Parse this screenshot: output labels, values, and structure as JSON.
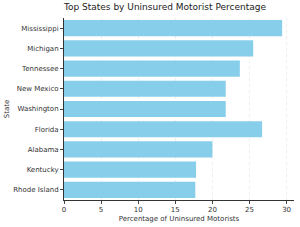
{
  "chart_data": {
    "type": "bar",
    "orientation": "horizontal",
    "title": "Top States by Uninsured Motorist Percentage",
    "x_label": "Percentage of Uninsured Motorists",
    "y_label": "State",
    "categories": [
      "Mississippi",
      "Michigan",
      "Tennessee",
      "New Mexico",
      "Washington",
      "Florida",
      "Alabama",
      "Kentucky",
      "Rhode Island"
    ],
    "values": [
      29.4,
      25.5,
      23.7,
      21.8,
      21.8,
      26.7,
      20.0,
      17.8,
      17.7
    ],
    "color": "#87ceeb",
    "xlim": [
      0,
      31
    ],
    "xticks": [
      0,
      5,
      10,
      15,
      20,
      25,
      30
    ],
    "grid": true
  }
}
